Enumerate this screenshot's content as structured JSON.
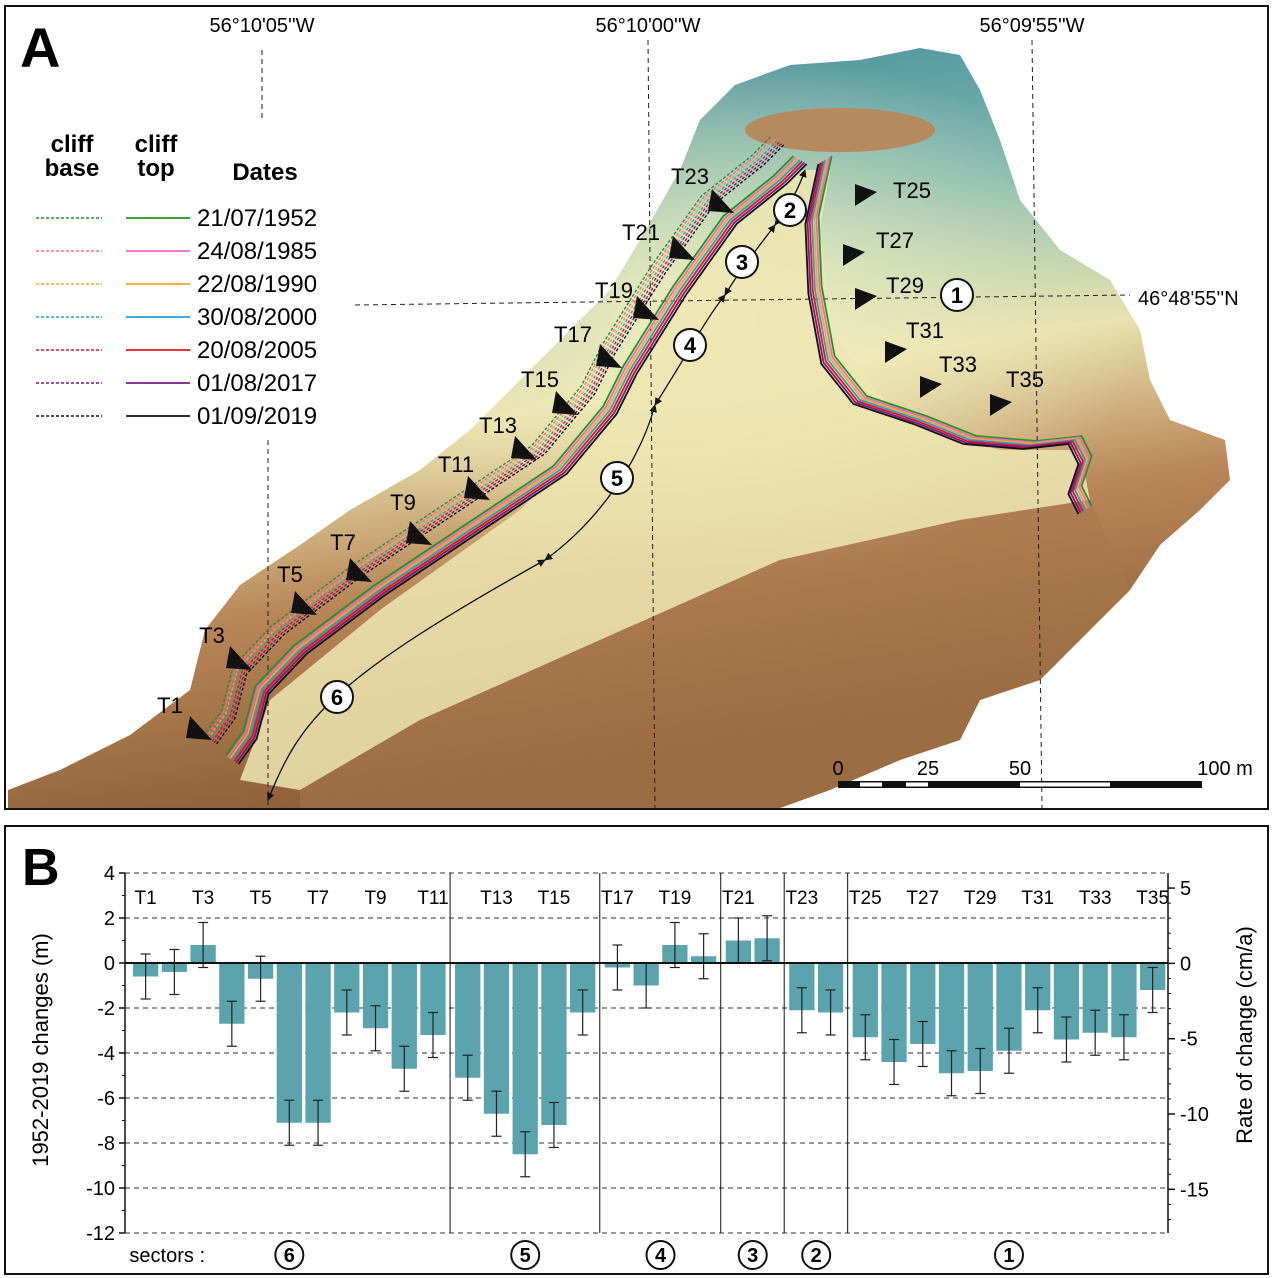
{
  "panel_a": {
    "label": "A",
    "lon_labels": [
      "56°10'05''W",
      "56°10'00''W",
      "56°09'55''W"
    ],
    "lat_label": "46°48'55''N",
    "legend": {
      "col_base": [
        "cliff",
        "base"
      ],
      "col_top": [
        "cliff",
        "top"
      ],
      "col_dates": "Dates",
      "entries": [
        {
          "date": "21/07/1952",
          "color": "#1a9a1a"
        },
        {
          "date": "24/08/1985",
          "color": "#ee66cc"
        },
        {
          "date": "22/08/1990",
          "color": "#f5a623"
        },
        {
          "date": "30/08/2000",
          "color": "#1fa0d6"
        },
        {
          "date": "20/08/2005",
          "color": "#e8141c"
        },
        {
          "date": "01/08/2017",
          "color": "#7a1a8c"
        },
        {
          "date": "01/09/2019",
          "color": "#111111"
        }
      ]
    },
    "transects": [
      "T1",
      "T3",
      "T5",
      "T7",
      "T9",
      "T11",
      "T13",
      "T15",
      "T17",
      "T19",
      "T21",
      "T23",
      "T25",
      "T27",
      "T29",
      "T31",
      "T33",
      "T35"
    ],
    "sectors": [
      "1",
      "2",
      "3",
      "4",
      "5",
      "6"
    ],
    "scale_bar": {
      "ticks": [
        "0",
        "25",
        "50",
        "100 m"
      ]
    }
  },
  "chart_data": {
    "type": "bar",
    "label": "B",
    "ylabel": "1952-2019 changes (m)",
    "y2label": "Rate of change (cm/a)",
    "ylim": [
      -12,
      4
    ],
    "y2lim": [
      -17.9,
      6
    ],
    "yticks": [
      4,
      2,
      0,
      -2,
      -4,
      -6,
      -8,
      -10,
      -12
    ],
    "y2ticks": [
      5,
      0,
      -5,
      -10,
      -15
    ],
    "grid": "horizontal dashed",
    "bar_color": "#5ba3ad",
    "transect_labels": [
      "T1",
      "T3",
      "T5",
      "T7",
      "T9",
      "T11",
      "T13",
      "T15",
      "T17",
      "T19",
      "T21",
      "T23",
      "T25",
      "T27",
      "T29",
      "T31",
      "T33",
      "T35"
    ],
    "sectors_label": "sectors :",
    "sectors": [
      {
        "name": "6",
        "values": [
          -0.6,
          -0.4,
          0.8,
          -2.7,
          -0.7,
          -7.1,
          -7.1,
          -2.2,
          -2.9,
          -4.7,
          -3.2
        ],
        "errors": [
          1.0,
          1.0,
          1.0,
          1.0,
          1.0,
          1.0,
          1.0,
          1.0,
          1.0,
          1.0,
          1.0
        ]
      },
      {
        "name": "5",
        "values": [
          -5.1,
          -6.7,
          -8.5,
          -7.2,
          -2.2
        ],
        "errors": [
          1.0,
          1.0,
          1.0,
          1.0,
          1.0
        ]
      },
      {
        "name": "4",
        "values": [
          -0.2,
          -1.0,
          0.8,
          0.3
        ],
        "errors": [
          1.0,
          1.0,
          1.0,
          1.0
        ]
      },
      {
        "name": "3",
        "values": [
          1.0,
          1.1
        ],
        "errors": [
          1.0,
          1.0
        ]
      },
      {
        "name": "2",
        "values": [
          -2.1,
          -2.2
        ],
        "errors": [
          1.0,
          1.0
        ]
      },
      {
        "name": "1",
        "values": [
          -3.3,
          -4.4,
          -3.6,
          -4.9,
          -4.8,
          -3.9,
          -2.1,
          -3.4,
          -3.1,
          -3.3,
          -1.2
        ],
        "errors": [
          1.0,
          1.0,
          1.0,
          1.0,
          1.0,
          1.0,
          1.0,
          1.0,
          1.0,
          1.0,
          1.0
        ]
      }
    ]
  }
}
